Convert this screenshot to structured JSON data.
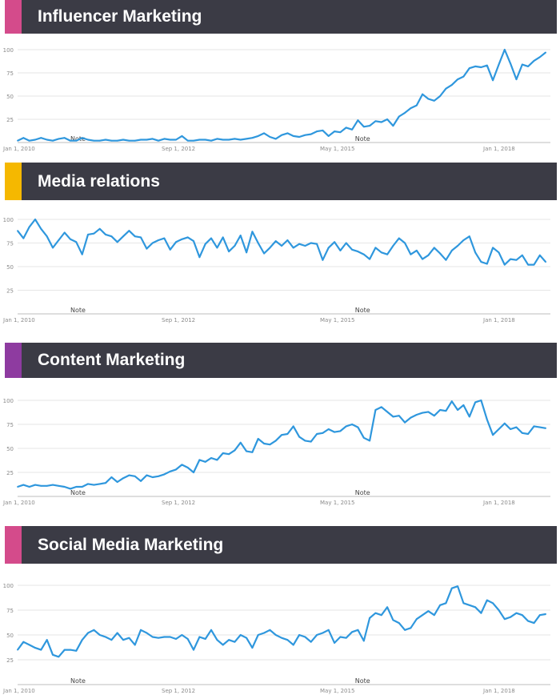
{
  "panels": [
    {
      "title": "Influencer Marketing",
      "accent": "#d44b8b"
    },
    {
      "title": "Media relations",
      "accent": "#f5b800"
    },
    {
      "title": "Content Marketing",
      "accent": "#8e3ba0"
    },
    {
      "title": "Social Media Marketing",
      "accent": "#d44b8b"
    }
  ],
  "line_color": "#2f97dd",
  "chart_data": [
    {
      "type": "line",
      "title": "Influencer Marketing",
      "x_ticks": [
        "Jan 1, 2010",
        "Sep 1, 2012",
        "May 1, 2015",
        "Jan 1, 2018"
      ],
      "y_ticks": [
        25,
        50,
        75,
        100
      ],
      "ylim": [
        0,
        100
      ],
      "xlim": [
        2010.0,
        2019.08
      ],
      "grid": true,
      "annotations": [
        {
          "text": "Note",
          "x": 2010.9
        },
        {
          "text": "Note",
          "x": 2015.75
        }
      ],
      "x": [
        2010.0,
        2010.1,
        2010.2,
        2010.3,
        2010.4,
        2010.5,
        2010.6,
        2010.7,
        2010.8,
        2010.9,
        2011.0,
        2011.1,
        2011.2,
        2011.3,
        2011.4,
        2011.5,
        2011.6,
        2011.7,
        2011.8,
        2011.9,
        2012.0,
        2012.1,
        2012.2,
        2012.3,
        2012.4,
        2012.5,
        2012.6,
        2012.7,
        2012.8,
        2012.9,
        2013.0,
        2013.1,
        2013.2,
        2013.3,
        2013.4,
        2013.5,
        2013.6,
        2013.7,
        2013.8,
        2013.9,
        2014.0,
        2014.1,
        2014.2,
        2014.3,
        2014.4,
        2014.5,
        2014.6,
        2014.7,
        2014.8,
        2014.9,
        2015.0,
        2015.1,
        2015.2,
        2015.3,
        2015.4,
        2015.5,
        2015.6,
        2015.7,
        2015.8,
        2015.9,
        2016.0,
        2016.1,
        2016.2,
        2016.3,
        2016.4,
        2016.5,
        2016.6,
        2016.7,
        2016.8,
        2016.9,
        2017.0,
        2017.1,
        2017.2,
        2017.3,
        2017.4,
        2017.5,
        2017.6,
        2017.7,
        2017.8,
        2017.9,
        2018.0,
        2018.1,
        2018.2,
        2018.3,
        2018.4,
        2018.5,
        2018.6,
        2018.7,
        2018.8,
        2018.9,
        2019.0
      ],
      "values": [
        2,
        5,
        2,
        3,
        5,
        3,
        2,
        4,
        5,
        2,
        2,
        5,
        3,
        2,
        2,
        3,
        2,
        2,
        3,
        2,
        2,
        3,
        3,
        4,
        2,
        4,
        3,
        3,
        7,
        2,
        2,
        3,
        3,
        2,
        4,
        3,
        3,
        4,
        3,
        4,
        5,
        7,
        10,
        6,
        4,
        8,
        10,
        7,
        6,
        8,
        9,
        12,
        13,
        7,
        12,
        11,
        16,
        14,
        24,
        17,
        18,
        23,
        22,
        25,
        18,
        28,
        32,
        37,
        40,
        52,
        47,
        45,
        50,
        58,
        62,
        68,
        71,
        80,
        82,
        81,
        83,
        67,
        84,
        100,
        85,
        68,
        84,
        82,
        88,
        92,
        97
      ]
    },
    {
      "type": "line",
      "title": "Media relations",
      "x_ticks": [
        "Jan 1, 2010",
        "Sep 1, 2012",
        "May 1, 2015",
        "Jan 1, 2018"
      ],
      "y_ticks": [
        25,
        50,
        75,
        100
      ],
      "ylim": [
        0,
        100
      ],
      "xlim": [
        2010.0,
        2019.08
      ],
      "grid": true,
      "annotations": [
        {
          "text": "Note",
          "x": 2010.9
        },
        {
          "text": "Note",
          "x": 2015.75
        }
      ],
      "x": [
        2010.0,
        2010.1,
        2010.2,
        2010.3,
        2010.4,
        2010.5,
        2010.6,
        2010.7,
        2010.8,
        2010.9,
        2011.0,
        2011.1,
        2011.2,
        2011.3,
        2011.4,
        2011.5,
        2011.6,
        2011.7,
        2011.8,
        2011.9,
        2012.0,
        2012.1,
        2012.2,
        2012.3,
        2012.4,
        2012.5,
        2012.6,
        2012.7,
        2012.8,
        2012.9,
        2013.0,
        2013.1,
        2013.2,
        2013.3,
        2013.4,
        2013.5,
        2013.6,
        2013.7,
        2013.8,
        2013.9,
        2014.0,
        2014.1,
        2014.2,
        2014.3,
        2014.4,
        2014.5,
        2014.6,
        2014.7,
        2014.8,
        2014.9,
        2015.0,
        2015.1,
        2015.2,
        2015.3,
        2015.4,
        2015.5,
        2015.6,
        2015.7,
        2015.8,
        2015.9,
        2016.0,
        2016.1,
        2016.2,
        2016.3,
        2016.4,
        2016.5,
        2016.6,
        2016.7,
        2016.8,
        2016.9,
        2017.0,
        2017.1,
        2017.2,
        2017.3,
        2017.4,
        2017.5,
        2017.6,
        2017.7,
        2017.8,
        2017.9,
        2018.0,
        2018.1,
        2018.2,
        2018.3,
        2018.4,
        2018.5,
        2018.6,
        2018.7,
        2018.8,
        2018.9,
        2019.0
      ],
      "values": [
        88,
        80,
        92,
        100,
        90,
        82,
        70,
        78,
        86,
        79,
        76,
        63,
        84,
        85,
        90,
        84,
        82,
        76,
        82,
        88,
        82,
        81,
        69,
        75,
        78,
        80,
        68,
        76,
        79,
        81,
        77,
        60,
        74,
        80,
        70,
        81,
        66,
        72,
        83,
        65,
        87,
        75,
        64,
        70,
        77,
        72,
        78,
        70,
        74,
        72,
        75,
        74,
        57,
        70,
        76,
        67,
        75,
        68,
        66,
        63,
        58,
        70,
        65,
        63,
        72,
        80,
        75,
        63,
        67,
        58,
        62,
        70,
        64,
        57,
        67,
        72,
        78,
        82,
        65,
        55,
        53,
        70,
        65,
        52,
        58,
        57,
        62,
        52,
        52,
        62,
        55
      ]
    },
    {
      "type": "line",
      "title": "Content Marketing",
      "x_ticks": [
        "Jan 1, 2010",
        "Sep 1, 2012",
        "May 1, 2015",
        "Jan 1, 2018"
      ],
      "y_ticks": [
        25,
        50,
        75,
        100
      ],
      "ylim": [
        0,
        100
      ],
      "xlim": [
        2010.0,
        2019.08
      ],
      "grid": true,
      "annotations": [
        {
          "text": "Note",
          "x": 2010.9
        },
        {
          "text": "Note",
          "x": 2015.75
        }
      ],
      "x": [
        2010.0,
        2010.1,
        2010.2,
        2010.3,
        2010.4,
        2010.5,
        2010.6,
        2010.7,
        2010.8,
        2010.9,
        2011.0,
        2011.1,
        2011.2,
        2011.3,
        2011.4,
        2011.5,
        2011.6,
        2011.7,
        2011.8,
        2011.9,
        2012.0,
        2012.1,
        2012.2,
        2012.3,
        2012.4,
        2012.5,
        2012.6,
        2012.7,
        2012.8,
        2012.9,
        2013.0,
        2013.1,
        2013.2,
        2013.3,
        2013.4,
        2013.5,
        2013.6,
        2013.7,
        2013.8,
        2013.9,
        2014.0,
        2014.1,
        2014.2,
        2014.3,
        2014.4,
        2014.5,
        2014.6,
        2014.7,
        2014.8,
        2014.9,
        2015.0,
        2015.1,
        2015.2,
        2015.3,
        2015.4,
        2015.5,
        2015.6,
        2015.7,
        2015.8,
        2015.9,
        2016.0,
        2016.1,
        2016.2,
        2016.3,
        2016.4,
        2016.5,
        2016.6,
        2016.7,
        2016.8,
        2016.9,
        2017.0,
        2017.1,
        2017.2,
        2017.3,
        2017.4,
        2017.5,
        2017.6,
        2017.7,
        2017.8,
        2017.9,
        2018.0,
        2018.1,
        2018.2,
        2018.3,
        2018.4,
        2018.5,
        2018.6,
        2018.7,
        2018.8,
        2018.9,
        2019.0
      ],
      "values": [
        10,
        12,
        10,
        12,
        11,
        11,
        12,
        11,
        10,
        8,
        10,
        10,
        13,
        12,
        13,
        14,
        20,
        15,
        19,
        22,
        21,
        16,
        22,
        20,
        21,
        23,
        26,
        28,
        33,
        30,
        25,
        38,
        36,
        40,
        38,
        45,
        44,
        48,
        56,
        47,
        46,
        60,
        55,
        54,
        58,
        64,
        65,
        73,
        62,
        58,
        57,
        65,
        66,
        70,
        67,
        68,
        73,
        75,
        72,
        61,
        58,
        90,
        93,
        88,
        83,
        84,
        77,
        82,
        85,
        87,
        88,
        84,
        90,
        89,
        99,
        90,
        95,
        83,
        98,
        100,
        80,
        64,
        70,
        76,
        70,
        72,
        66,
        65,
        73,
        72,
        71
      ]
    },
    {
      "type": "line",
      "title": "Social Media Marketing",
      "x_ticks": [
        "Jan 1, 2010",
        "Sep 1, 2012",
        "May 1, 2015",
        "Jan 1, 2018"
      ],
      "y_ticks": [
        25,
        50,
        75,
        100
      ],
      "ylim": [
        0,
        100
      ],
      "xlim": [
        2010.0,
        2019.08
      ],
      "grid": true,
      "annotations": [
        {
          "text": "Note",
          "x": 2010.9
        },
        {
          "text": "Note",
          "x": 2015.75
        }
      ],
      "x": [
        2010.0,
        2010.1,
        2010.2,
        2010.3,
        2010.4,
        2010.5,
        2010.6,
        2010.7,
        2010.8,
        2010.9,
        2011.0,
        2011.1,
        2011.2,
        2011.3,
        2011.4,
        2011.5,
        2011.6,
        2011.7,
        2011.8,
        2011.9,
        2012.0,
        2012.1,
        2012.2,
        2012.3,
        2012.4,
        2012.5,
        2012.6,
        2012.7,
        2012.8,
        2012.9,
        2013.0,
        2013.1,
        2013.2,
        2013.3,
        2013.4,
        2013.5,
        2013.6,
        2013.7,
        2013.8,
        2013.9,
        2014.0,
        2014.1,
        2014.2,
        2014.3,
        2014.4,
        2014.5,
        2014.6,
        2014.7,
        2014.8,
        2014.9,
        2015.0,
        2015.1,
        2015.2,
        2015.3,
        2015.4,
        2015.5,
        2015.6,
        2015.7,
        2015.8,
        2015.9,
        2016.0,
        2016.1,
        2016.2,
        2016.3,
        2016.4,
        2016.5,
        2016.6,
        2016.7,
        2016.8,
        2016.9,
        2017.0,
        2017.1,
        2017.2,
        2017.3,
        2017.4,
        2017.5,
        2017.6,
        2017.7,
        2017.8,
        2017.9,
        2018.0,
        2018.1,
        2018.2,
        2018.3,
        2018.4,
        2018.5,
        2018.6,
        2018.7,
        2018.8,
        2018.9,
        2019.0
      ],
      "values": [
        35,
        43,
        40,
        37,
        35,
        45,
        30,
        28,
        35,
        35,
        34,
        45,
        52,
        55,
        50,
        48,
        45,
        52,
        45,
        47,
        40,
        55,
        52,
        48,
        47,
        48,
        48,
        46,
        50,
        46,
        35,
        48,
        46,
        55,
        45,
        40,
        45,
        43,
        50,
        47,
        37,
        50,
        52,
        55,
        50,
        47,
        45,
        40,
        50,
        48,
        43,
        50,
        52,
        55,
        42,
        48,
        47,
        53,
        55,
        44,
        67,
        72,
        70,
        78,
        65,
        62,
        55,
        57,
        66,
        70,
        74,
        70,
        80,
        82,
        97,
        99,
        82,
        80,
        78,
        72,
        85,
        82,
        75,
        66,
        68,
        72,
        70,
        64,
        62,
        70,
        71
      ]
    }
  ]
}
